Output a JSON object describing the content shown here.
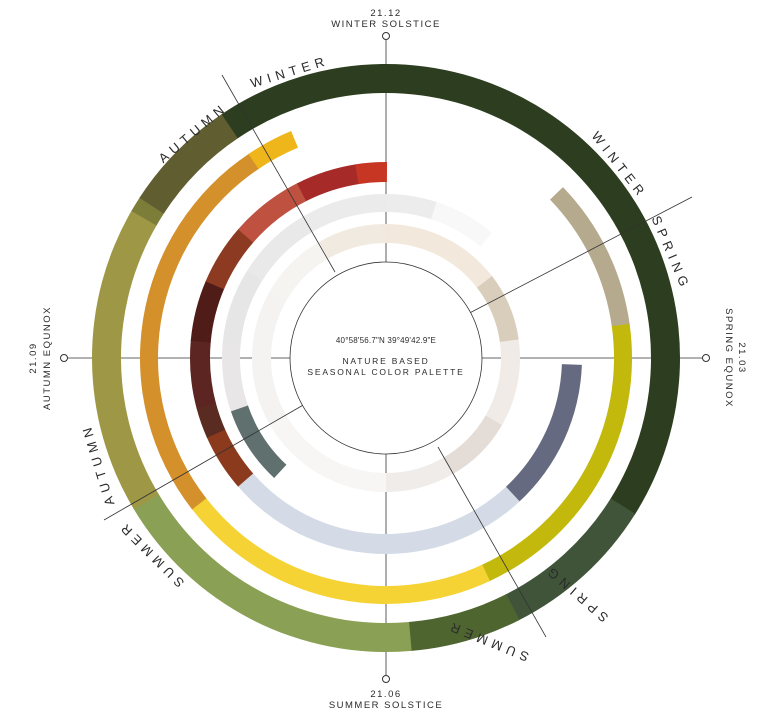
{
  "center": {
    "coordinates": "40°58'56.7\"N 39°49'42.9\"E",
    "title_line1": "NATURE BASED",
    "title_line2": "SEASONAL COLOR PALETTE"
  },
  "markers": {
    "top": {
      "date": "21.12",
      "name": "WINTER SOLSTICE"
    },
    "right": {
      "date": "21.03",
      "name": "SPRING EQUNOX"
    },
    "bottom": {
      "date": "21.06",
      "name": "SUMMER SOLSTICE"
    },
    "left": {
      "date": "21.09",
      "name": "AUTUMN EQUNOX"
    }
  },
  "season_labels": {
    "winter_a": "WINTER",
    "autumn_a": "AUTUMN",
    "winter_b": "WINTER",
    "spring_a": "SPRING",
    "spring_b": "SPRING",
    "summer_a": "SUMMER",
    "summer_b": "SUMMER",
    "autumn_b": "AUTUMN"
  },
  "rings": [
    {
      "name": "outer-seasons",
      "segments": [
        {
          "start": 0,
          "end": 122,
          "color": "#2d3d1f"
        },
        {
          "start": 122,
          "end": 153,
          "color": "#3f5438"
        },
        {
          "start": 153,
          "end": 175,
          "color": "#4f6530"
        },
        {
          "start": 175,
          "end": 239,
          "color": "#8aa055"
        },
        {
          "start": 239,
          "end": 300,
          "color": "#9e9745"
        },
        {
          "start": 300,
          "end": 303,
          "color": "#7d7d3a"
        },
        {
          "start": 303,
          "end": 326,
          "color": "#605d31"
        },
        {
          "start": 326,
          "end": 360,
          "color": "#2d3d1f"
        }
      ]
    },
    {
      "name": "yellow-ring",
      "segments": [
        {
          "start": 46,
          "end": 82,
          "color": "#b5aa8d"
        },
        {
          "start": 82,
          "end": 155,
          "color": "#c3b80c"
        },
        {
          "start": 155,
          "end": 232,
          "color": "#f5d335"
        },
        {
          "start": 232,
          "end": 326,
          "color": "#d4902a"
        },
        {
          "start": 326,
          "end": 337,
          "color": "#eeb61a"
        }
      ]
    },
    {
      "name": "red-ring",
      "segments": [
        {
          "start": 92,
          "end": 137,
          "color": "#666a80"
        },
        {
          "start": 137,
          "end": 229,
          "color": "#d4dbe6"
        },
        {
          "start": 229,
          "end": 246,
          "color": "#8b3a1e"
        },
        {
          "start": 246,
          "end": 255,
          "color": "#5a2b20"
        },
        {
          "start": 255,
          "end": 275,
          "color": "#5c2521"
        },
        {
          "start": 275,
          "end": 293,
          "color": "#4f1c18"
        },
        {
          "start": 293,
          "end": 311,
          "color": "#8c3b22"
        },
        {
          "start": 311,
          "end": 333,
          "color": "#bf5140"
        },
        {
          "start": 333,
          "end": 351,
          "color": "#a62a28"
        },
        {
          "start": 351,
          "end": 360,
          "color": "#c73523"
        }
      ]
    },
    {
      "name": "grey-ring",
      "segments": [
        {
          "start": 223,
          "end": 251,
          "color": "#5f706f"
        },
        {
          "start": 251,
          "end": 275,
          "color": "#e8e6e6"
        },
        {
          "start": 275,
          "end": 302,
          "color": "#e6e6e6"
        },
        {
          "start": 302,
          "end": 330,
          "color": "#e9e9e9"
        },
        {
          "start": 330,
          "end": 360,
          "color": "#ebebeb"
        },
        {
          "start": 0,
          "end": 18,
          "color": "#ececec"
        },
        {
          "start": 18,
          "end": 40,
          "color": "#f8f8f8"
        }
      ]
    },
    {
      "name": "beige-ring",
      "segments": [
        {
          "start": 52,
          "end": 82,
          "color": "#d9cebc"
        },
        {
          "start": 82,
          "end": 120,
          "color": "#f1ebe7"
        },
        {
          "start": 120,
          "end": 150,
          "color": "#e4ddd7"
        },
        {
          "start": 150,
          "end": 180,
          "color": "#efece9"
        },
        {
          "start": 180,
          "end": 240,
          "color": "#f8f6f5"
        },
        {
          "start": 240,
          "end": 300,
          "color": "#f4f3f2"
        },
        {
          "start": 300,
          "end": 330,
          "color": "#f6f4f1"
        },
        {
          "start": 330,
          "end": 360,
          "color": "#f1eae0"
        },
        {
          "start": 0,
          "end": 52,
          "color": "#f3e8dc"
        }
      ]
    }
  ]
}
